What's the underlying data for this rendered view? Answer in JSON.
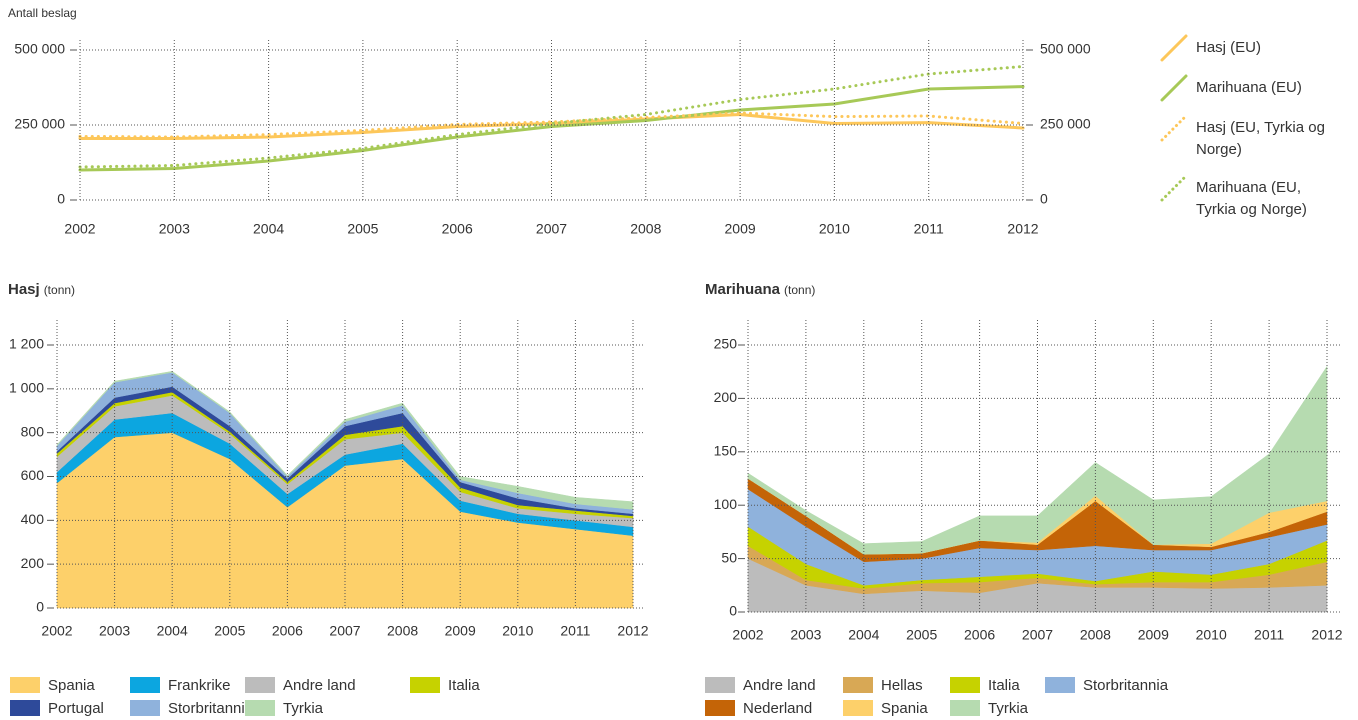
{
  "chart_data": [
    {
      "type": "line",
      "ylabel": "Antall beslag",
      "x": [
        2002,
        2003,
        2004,
        2005,
        2006,
        2007,
        2008,
        2009,
        2010,
        2011,
        2012
      ],
      "xlim": [
        2002,
        2012
      ],
      "xticks": [
        2002,
        2003,
        2004,
        2005,
        2006,
        2007,
        2008,
        2009,
        2010,
        2011,
        2012
      ],
      "ylim": [
        0,
        500000
      ],
      "yticks": [
        0,
        {
          "value": 250000,
          "label": "250 000"
        },
        {
          "value": 500000,
          "label": "500 000"
        }
      ],
      "y2lim": [
        0,
        500000
      ],
      "y2ticks": [
        0,
        {
          "value": 250000,
          "label": "250 000"
        },
        {
          "value": 500000,
          "label": "500 000"
        }
      ],
      "grid": true,
      "legend": "right",
      "series": [
        {
          "name": "Hasj (EU)",
          "color": "#fdc75a",
          "style": "solid",
          "values": [
            205000,
            205000,
            210000,
            225000,
            245000,
            255000,
            270000,
            285000,
            255000,
            258000,
            240000
          ]
        },
        {
          "name": "Marihuana (EU)",
          "color": "#a7c957",
          "style": "solid",
          "values": [
            100000,
            105000,
            130000,
            165000,
            210000,
            245000,
            265000,
            300000,
            320000,
            370000,
            378000
          ]
        },
        {
          "name": "Hasj (EU, Tyrkia og Norge)",
          "color": "#fdc75a",
          "style": "dotted",
          "values": [
            212000,
            210000,
            218000,
            232000,
            252000,
            260000,
            275000,
            290000,
            278000,
            280000,
            255000
          ]
        },
        {
          "name": "Marihuana (EU, Tyrkia og Norge)",
          "color": "#a7c957",
          "style": "dotted",
          "values": [
            110000,
            115000,
            140000,
            172000,
            218000,
            255000,
            285000,
            335000,
            370000,
            420000,
            445000
          ]
        }
      ]
    },
    {
      "type": "stacked-area",
      "title": "Hasj",
      "unit": "(tonn)",
      "x": [
        2002,
        2003,
        2004,
        2005,
        2006,
        2007,
        2008,
        2009,
        2010,
        2011,
        2012
      ],
      "xlim": [
        2002,
        2012
      ],
      "xticks": [
        2002,
        2003,
        2004,
        2005,
        2006,
        2007,
        2008,
        2009,
        2010,
        2011,
        2012
      ],
      "ylim": [
        0,
        1200
      ],
      "yticks": [
        0,
        200,
        400,
        600,
        800,
        {
          "value": 1000,
          "label": "1 000"
        },
        {
          "value": 1200,
          "label": "1 200"
        }
      ],
      "grid": true,
      "legend": "bottom",
      "series": [
        {
          "name": "Spania",
          "color": "#fdd06a",
          "values": [
            570,
            780,
            800,
            680,
            460,
            650,
            680,
            440,
            390,
            360,
            330
          ]
        },
        {
          "name": "Frankrike",
          "color": "#0ca6e0",
          "values": [
            50,
            80,
            90,
            70,
            60,
            50,
            70,
            50,
            40,
            40,
            40
          ]
        },
        {
          "name": "Andre land",
          "color": "#bcbcbc",
          "values": [
            70,
            60,
            80,
            45,
            45,
            70,
            50,
            40,
            25,
            30,
            40
          ]
        },
        {
          "name": "Italia",
          "color": "#c6d200",
          "values": [
            15,
            15,
            15,
            10,
            10,
            20,
            30,
            20,
            15,
            15,
            10
          ]
        },
        {
          "name": "Portugal",
          "color": "#2e4a9a",
          "values": [
            10,
            25,
            25,
            25,
            15,
            40,
            60,
            25,
            30,
            10,
            10
          ]
        },
        {
          "name": "Storbritannia",
          "color": "#8fb2dc",
          "values": [
            25,
            70,
            65,
            60,
            10,
            20,
            35,
            10,
            25,
            20,
            20
          ]
        },
        {
          "name": "Tyrkia",
          "color": "#b6dbb0",
          "values": [
            5,
            5,
            5,
            5,
            5,
            10,
            10,
            15,
            30,
            30,
            35
          ]
        }
      ]
    },
    {
      "type": "stacked-area",
      "title": "Marihuana",
      "unit": "(tonn)",
      "x": [
        2002,
        2003,
        2004,
        2005,
        2006,
        2007,
        2008,
        2009,
        2010,
        2011,
        2012
      ],
      "xlim": [
        2002,
        2012
      ],
      "xticks": [
        2002,
        2003,
        2004,
        2005,
        2006,
        2007,
        2008,
        2009,
        2010,
        2011,
        2012
      ],
      "ylim": [
        0,
        250
      ],
      "yticks": [
        0,
        50,
        100,
        150,
        200,
        250
      ],
      "grid": true,
      "legend": "bottom",
      "series": [
        {
          "name": "Andre land",
          "color": "#bcbcbc",
          "values": [
            50,
            25,
            17,
            20,
            18,
            27,
            23,
            23,
            22,
            23,
            25
          ]
        },
        {
          "name": "Hellas",
          "color": "#d8a855",
          "values": [
            12,
            5,
            5,
            7,
            10,
            5,
            3,
            5,
            6,
            12,
            22
          ]
        },
        {
          "name": "Italia",
          "color": "#c6d200",
          "values": [
            18,
            15,
            3,
            3,
            5,
            4,
            3,
            10,
            7,
            10,
            20
          ]
        },
        {
          "name": "Storbritannia",
          "color": "#8fb2dc",
          "values": [
            35,
            35,
            22,
            20,
            27,
            22,
            33,
            20,
            23,
            25,
            15
          ]
        },
        {
          "name": "Nederland",
          "color": "#c46407",
          "values": [
            10,
            10,
            7,
            5,
            7,
            5,
            42,
            5,
            3,
            5,
            12
          ]
        },
        {
          "name": "Spania",
          "color": "#fdd06a",
          "values": [
            0,
            0,
            0,
            0,
            0,
            2,
            5,
            0,
            3,
            18,
            10
          ]
        },
        {
          "name": "Tyrkia",
          "color": "#b6dbb0",
          "values": [
            5,
            5,
            10,
            11,
            23,
            25,
            31,
            42,
            44,
            55,
            126
          ]
        }
      ]
    }
  ]
}
